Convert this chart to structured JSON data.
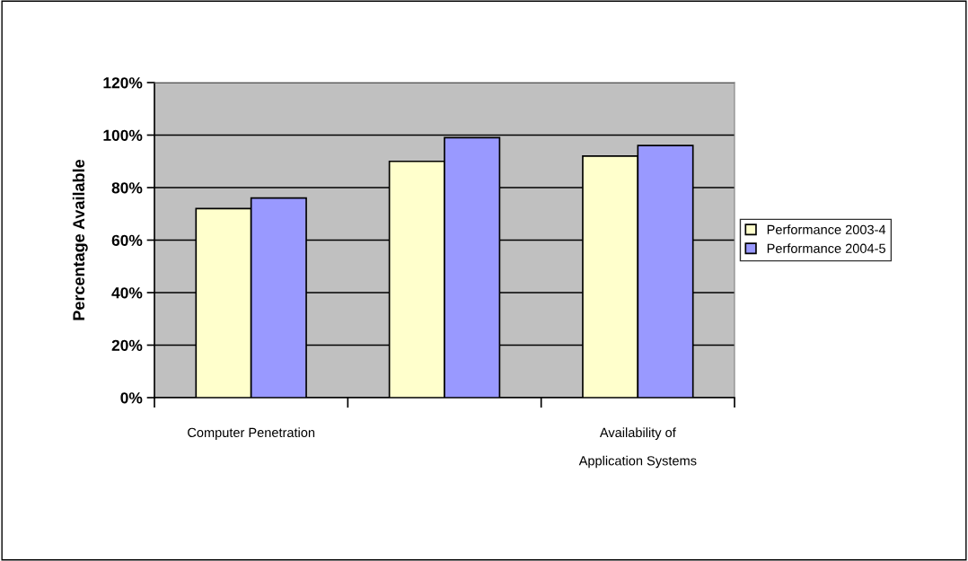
{
  "chart_data": {
    "type": "bar",
    "ylabel": "Percentage Available",
    "categories": [
      "Computer Penetration",
      null,
      "Availability of\n\nApplication Systems"
    ],
    "series": [
      {
        "name": "Performance 2003-4",
        "color": "#ffffcc",
        "values": [
          72,
          90,
          92
        ]
      },
      {
        "name": "Performance 2004-5",
        "color": "#9999ff",
        "values": [
          76,
          99,
          96
        ]
      }
    ],
    "ylim": [
      0,
      120
    ],
    "yticks": [
      {
        "value": 0,
        "label": "0%"
      },
      {
        "value": 20,
        "label": "20%"
      },
      {
        "value": 40,
        "label": "40%"
      },
      {
        "value": 60,
        "label": "60%"
      },
      {
        "value": 80,
        "label": "80%"
      },
      {
        "value": 100,
        "label": "100%"
      },
      {
        "value": 120,
        "label": "120%"
      }
    ],
    "grid": "y",
    "legend": "right"
  }
}
